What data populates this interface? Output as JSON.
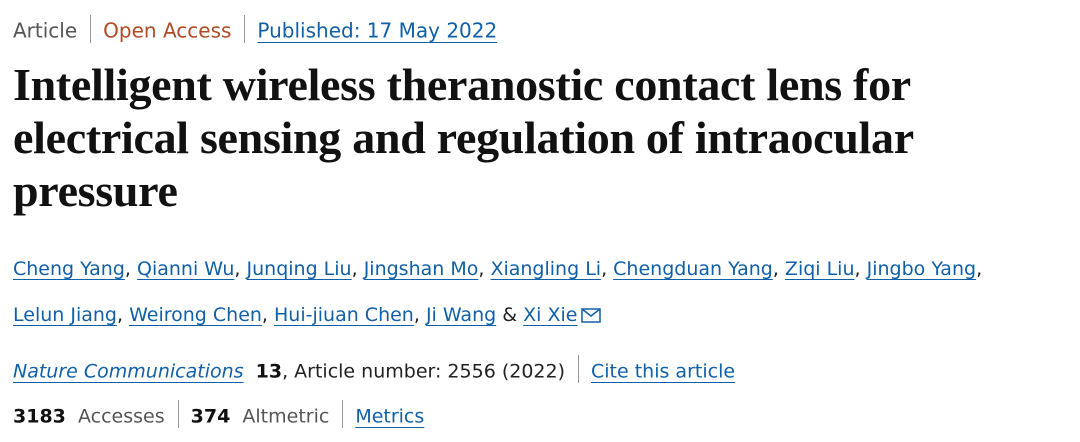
{
  "header": {
    "type": "Article",
    "access": "Open Access",
    "published": "Published: 17 May 2022"
  },
  "title": "Intelligent wireless theranostic contact lens for electrical sensing and regulation of intraocular pressure",
  "authors": [
    "Cheng Yang",
    "Qianni Wu",
    "Junqing Liu",
    "Jingshan Mo",
    "Xiangling Li",
    "Chengduan Yang",
    "Ziqi Liu",
    "Jingbo Yang",
    "Lelun Jiang",
    "Weirong Chen",
    "Hui-jiuan Chen",
    "Ji Wang",
    "Xi Xie"
  ],
  "author_separator": ",",
  "last_author_separator": "&",
  "citation": {
    "journal": "Nature Communications",
    "volume": "13",
    "details": ", Article number: 2556 (2022)",
    "cite_link": "Cite this article"
  },
  "metrics": {
    "accesses_count": "3183",
    "accesses_label": "Accesses",
    "altmetric_count": "374",
    "altmetric_label": "Altmetric",
    "metrics_link": "Metrics"
  }
}
